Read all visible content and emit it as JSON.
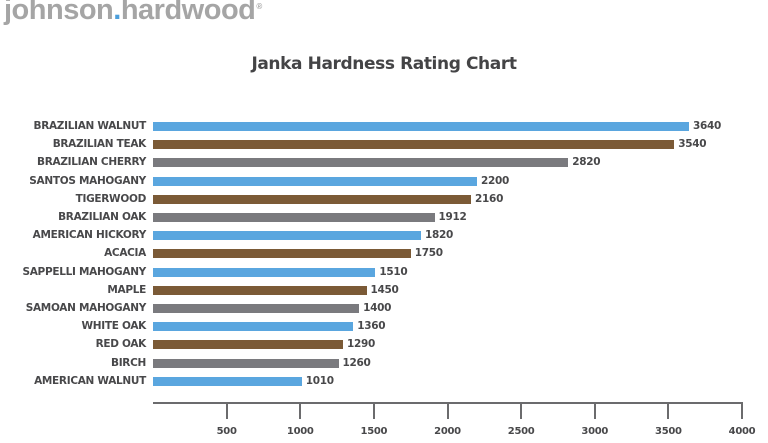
{
  "header": {
    "logo_left": "johnson",
    "logo_dot": ".",
    "logo_right": "hardwood",
    "logo_reg": "®"
  },
  "colors": {
    "blue": "#5aa6df",
    "brown": "#7b5a36",
    "gray": "#7a7a7e",
    "axis": "#6b6b6d",
    "text": "#48484a"
  },
  "chart_data": {
    "type": "bar",
    "orientation": "horizontal",
    "title": "Janka Hardness Rating Chart",
    "xlabel": "",
    "ylabel": "",
    "xlim": [
      0,
      4000
    ],
    "x_ticks": [
      500,
      1000,
      1500,
      2000,
      2500,
      3000,
      3500,
      4000
    ],
    "grid": false,
    "legend": null,
    "categories": [
      "BRAZILIAN WALNUT",
      "BRAZILIAN TEAK",
      "BRAZILIAN CHERRY",
      "SANTOS MAHOGANY",
      "TIGERWOOD",
      "BRAZILIAN OAK",
      "AMERICAN HICKORY",
      "ACACIA",
      "SAPPELLI MAHOGANY",
      "MAPLE",
      "SAMOAN MAHOGANY",
      "WHITE OAK",
      "RED OAK",
      "BIRCH",
      "AMERICAN WALNUT"
    ],
    "values": [
      3640,
      3540,
      2820,
      2200,
      2160,
      1912,
      1820,
      1750,
      1510,
      1450,
      1400,
      1360,
      1290,
      1260,
      1010
    ],
    "bar_colors": [
      "blue",
      "brown",
      "gray",
      "blue",
      "brown",
      "gray",
      "blue",
      "brown",
      "blue",
      "brown",
      "gray",
      "blue",
      "brown",
      "gray",
      "blue"
    ],
    "data_labels": [
      "3640",
      "3540",
      "2820",
      "2200",
      "2160",
      "1912",
      "1820",
      "1750",
      "1510",
      "1450",
      "1400",
      "1360",
      "1290",
      "1260",
      "1010"
    ]
  }
}
